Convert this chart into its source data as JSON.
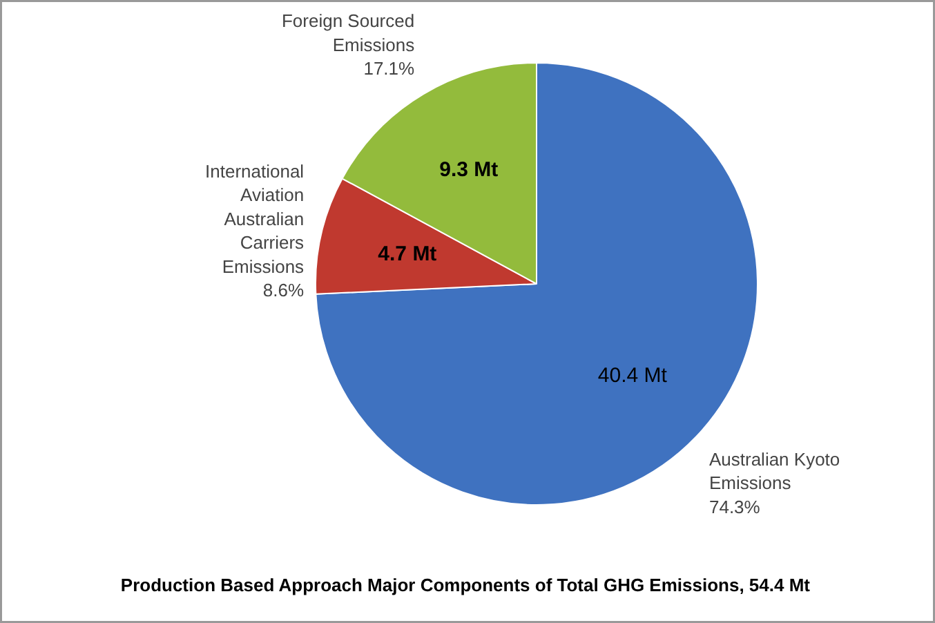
{
  "chart_data": {
    "type": "pie",
    "title": "Production Based Approach Major Components of  Total GHG Emissions, 54.4 Mt",
    "categories": [
      "Australian Kyoto\nEmissions\n74.3%",
      "International\nAviation\nAustralian\nCarriers\nEmissions\n8.6%",
      "Foreign Sourced\nEmissions\n17.1%"
    ],
    "values": [
      40.4,
      4.7,
      9.3
    ],
    "colors": [
      "#3f72c0",
      "#c0392f",
      "#93bb3c"
    ],
    "value_labels": [
      "40.4 Mt",
      "4.7 Mt",
      "9.3 Mt"
    ]
  }
}
